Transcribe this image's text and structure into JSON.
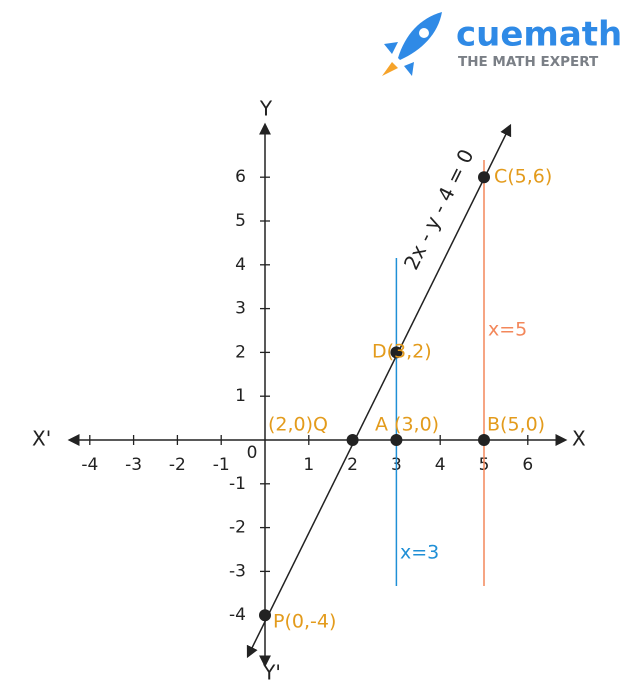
{
  "logo": {
    "name": "cuemath",
    "tagline": "THE MATH EXPERT"
  },
  "axes": {
    "x_label": "X",
    "x_neg_label": "X'",
    "y_label": "Y",
    "y_neg_label": "Y'",
    "origin": "0",
    "x_ticks": [
      -4,
      -3,
      -2,
      -1,
      1,
      2,
      3,
      4,
      5,
      6
    ],
    "y_ticks": [
      -4,
      -3,
      -2,
      -1,
      1,
      2,
      3,
      4,
      5,
      6
    ]
  },
  "lines": [
    {
      "label": "2x - y - 4 = 0",
      "color": "#222222"
    },
    {
      "label": "x=3",
      "x": 3,
      "color": "#1f8fd6"
    },
    {
      "label": "x=5",
      "x": 5,
      "color": "#f3875a"
    }
  ],
  "point_color": "#e39b1c",
  "points": [
    {
      "label": "(2,0)Q",
      "x": 2,
      "y": 0
    },
    {
      "label": "A (3,0)",
      "x": 3,
      "y": 0
    },
    {
      "label": "B(5,0)",
      "x": 5,
      "y": 0
    },
    {
      "label": "C(5,6)",
      "x": 5,
      "y": 6
    },
    {
      "label": "D(3,2)",
      "x": 3,
      "y": 2
    },
    {
      "label": "P(0,-4)",
      "x": 0,
      "y": -4
    }
  ]
}
